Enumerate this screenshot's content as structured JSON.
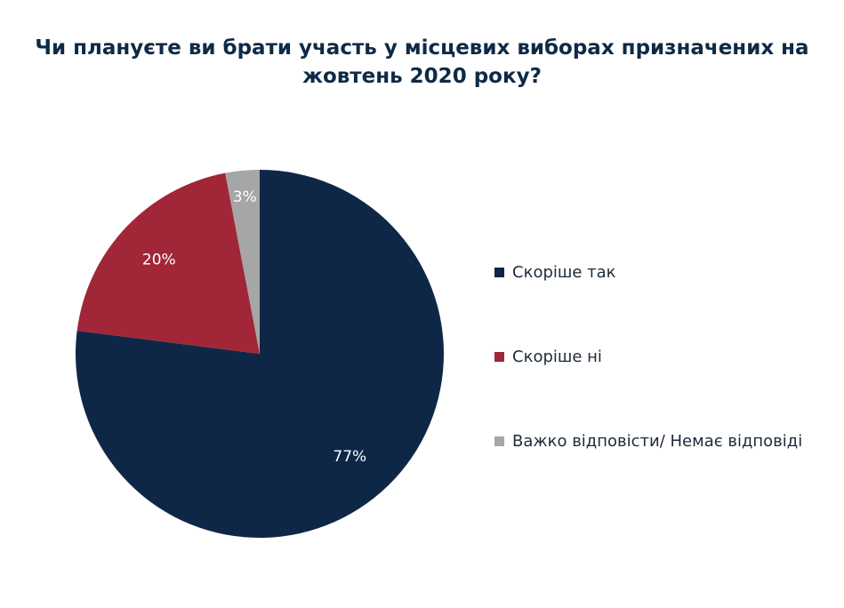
{
  "chart_data": {
    "type": "pie",
    "title_lines": [
      "Чи плануєте ви брати участь у місцевих виборах призначених на",
      "жовтень 2020 року?"
    ],
    "slices": [
      {
        "label": "Скоріше так",
        "value": 77,
        "display": "77%",
        "color": "#0f2747"
      },
      {
        "label": "Скоріше ні",
        "value": 20,
        "display": "20%",
        "color": "#a12638"
      },
      {
        "label": "Важко відповісти/ Немає відповіді",
        "value": 3,
        "display": "3%",
        "color": "#a6a6a6"
      }
    ],
    "start_angle_deg": 0,
    "direction": "clockwise",
    "legend_position": "right"
  }
}
